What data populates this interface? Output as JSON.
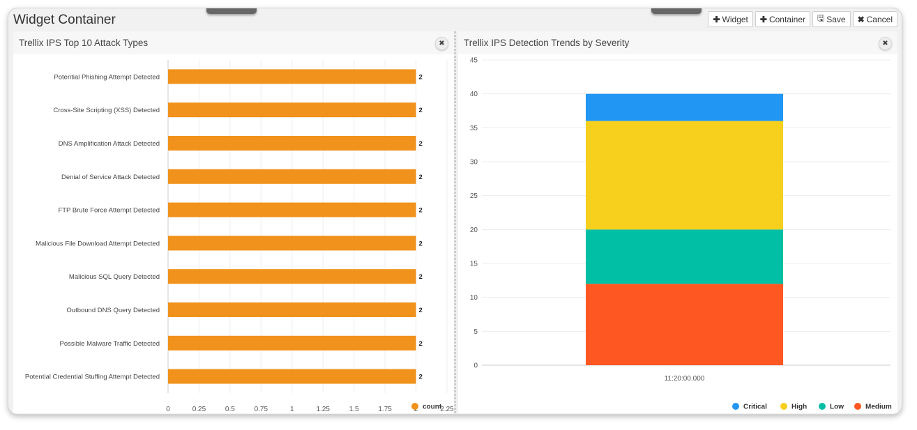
{
  "container": {
    "title": "Widget Container",
    "toolbar": [
      {
        "icon": "plus-icon",
        "glyph": "✚",
        "label": "Widget"
      },
      {
        "icon": "plus-icon",
        "glyph": "✚",
        "label": "Container"
      },
      {
        "icon": "floppy-disk-icon",
        "glyph": "🖫",
        "label": "Save"
      },
      {
        "icon": "times-icon",
        "glyph": "✖",
        "label": "Cancel"
      }
    ]
  },
  "widgets": [
    {
      "title": "Trellix IPS Top 10 Attack Types",
      "close_glyph": "✖"
    },
    {
      "title": "Trellix IPS Detection Trends by Severity",
      "close_glyph": "✖"
    }
  ],
  "chart_data": [
    {
      "type": "bar",
      "orientation": "horizontal",
      "categories": [
        "Potential Phishing Attempt Detected",
        "Cross-Site Scripting (XSS) Detected",
        "DNS Amplification Attack Detected",
        "Denial of Service Attack Detected",
        "FTP Brute Force Attempt Detected",
        "Malicious File Download Attempt Detected",
        "Malicious SQL Query Detected",
        "Outbound DNS Query Detected",
        "Possible Malware Traffic Detected",
        "Potential Credential Stuffing Attempt Detected"
      ],
      "series": [
        {
          "name": "count",
          "color": "#f0921c",
          "values": [
            2,
            2,
            2,
            2,
            2,
            2,
            2,
            2,
            2,
            2
          ]
        }
      ],
      "xlim": [
        0,
        2.25
      ],
      "xticks": [
        "0",
        "0.25",
        "0.5",
        "0.75",
        "1",
        "1.25",
        "1.5",
        "1.75",
        "2",
        "2.25"
      ],
      "data_labels": true,
      "grid": "vertical",
      "legend": "bottom-right"
    },
    {
      "type": "bar",
      "stacked": true,
      "categories": [
        "11:20:00.000"
      ],
      "series": [
        {
          "name": "Critical",
          "color": "#2196f3",
          "values": [
            4
          ]
        },
        {
          "name": "High",
          "color": "#f7d01e",
          "values": [
            16
          ]
        },
        {
          "name": "Low",
          "color": "#00bfa5",
          "values": [
            8
          ]
        },
        {
          "name": "Medium",
          "color": "#ff5722",
          "values": [
            12
          ]
        }
      ],
      "stack_order_bottom_to_top": [
        "Medium",
        "Low",
        "High",
        "Critical"
      ],
      "ylim": [
        0,
        45
      ],
      "yticks": [
        "0",
        "5",
        "10",
        "15",
        "20",
        "25",
        "30",
        "35",
        "40",
        "45"
      ],
      "grid": "horizontal",
      "legend": "bottom-right"
    }
  ]
}
